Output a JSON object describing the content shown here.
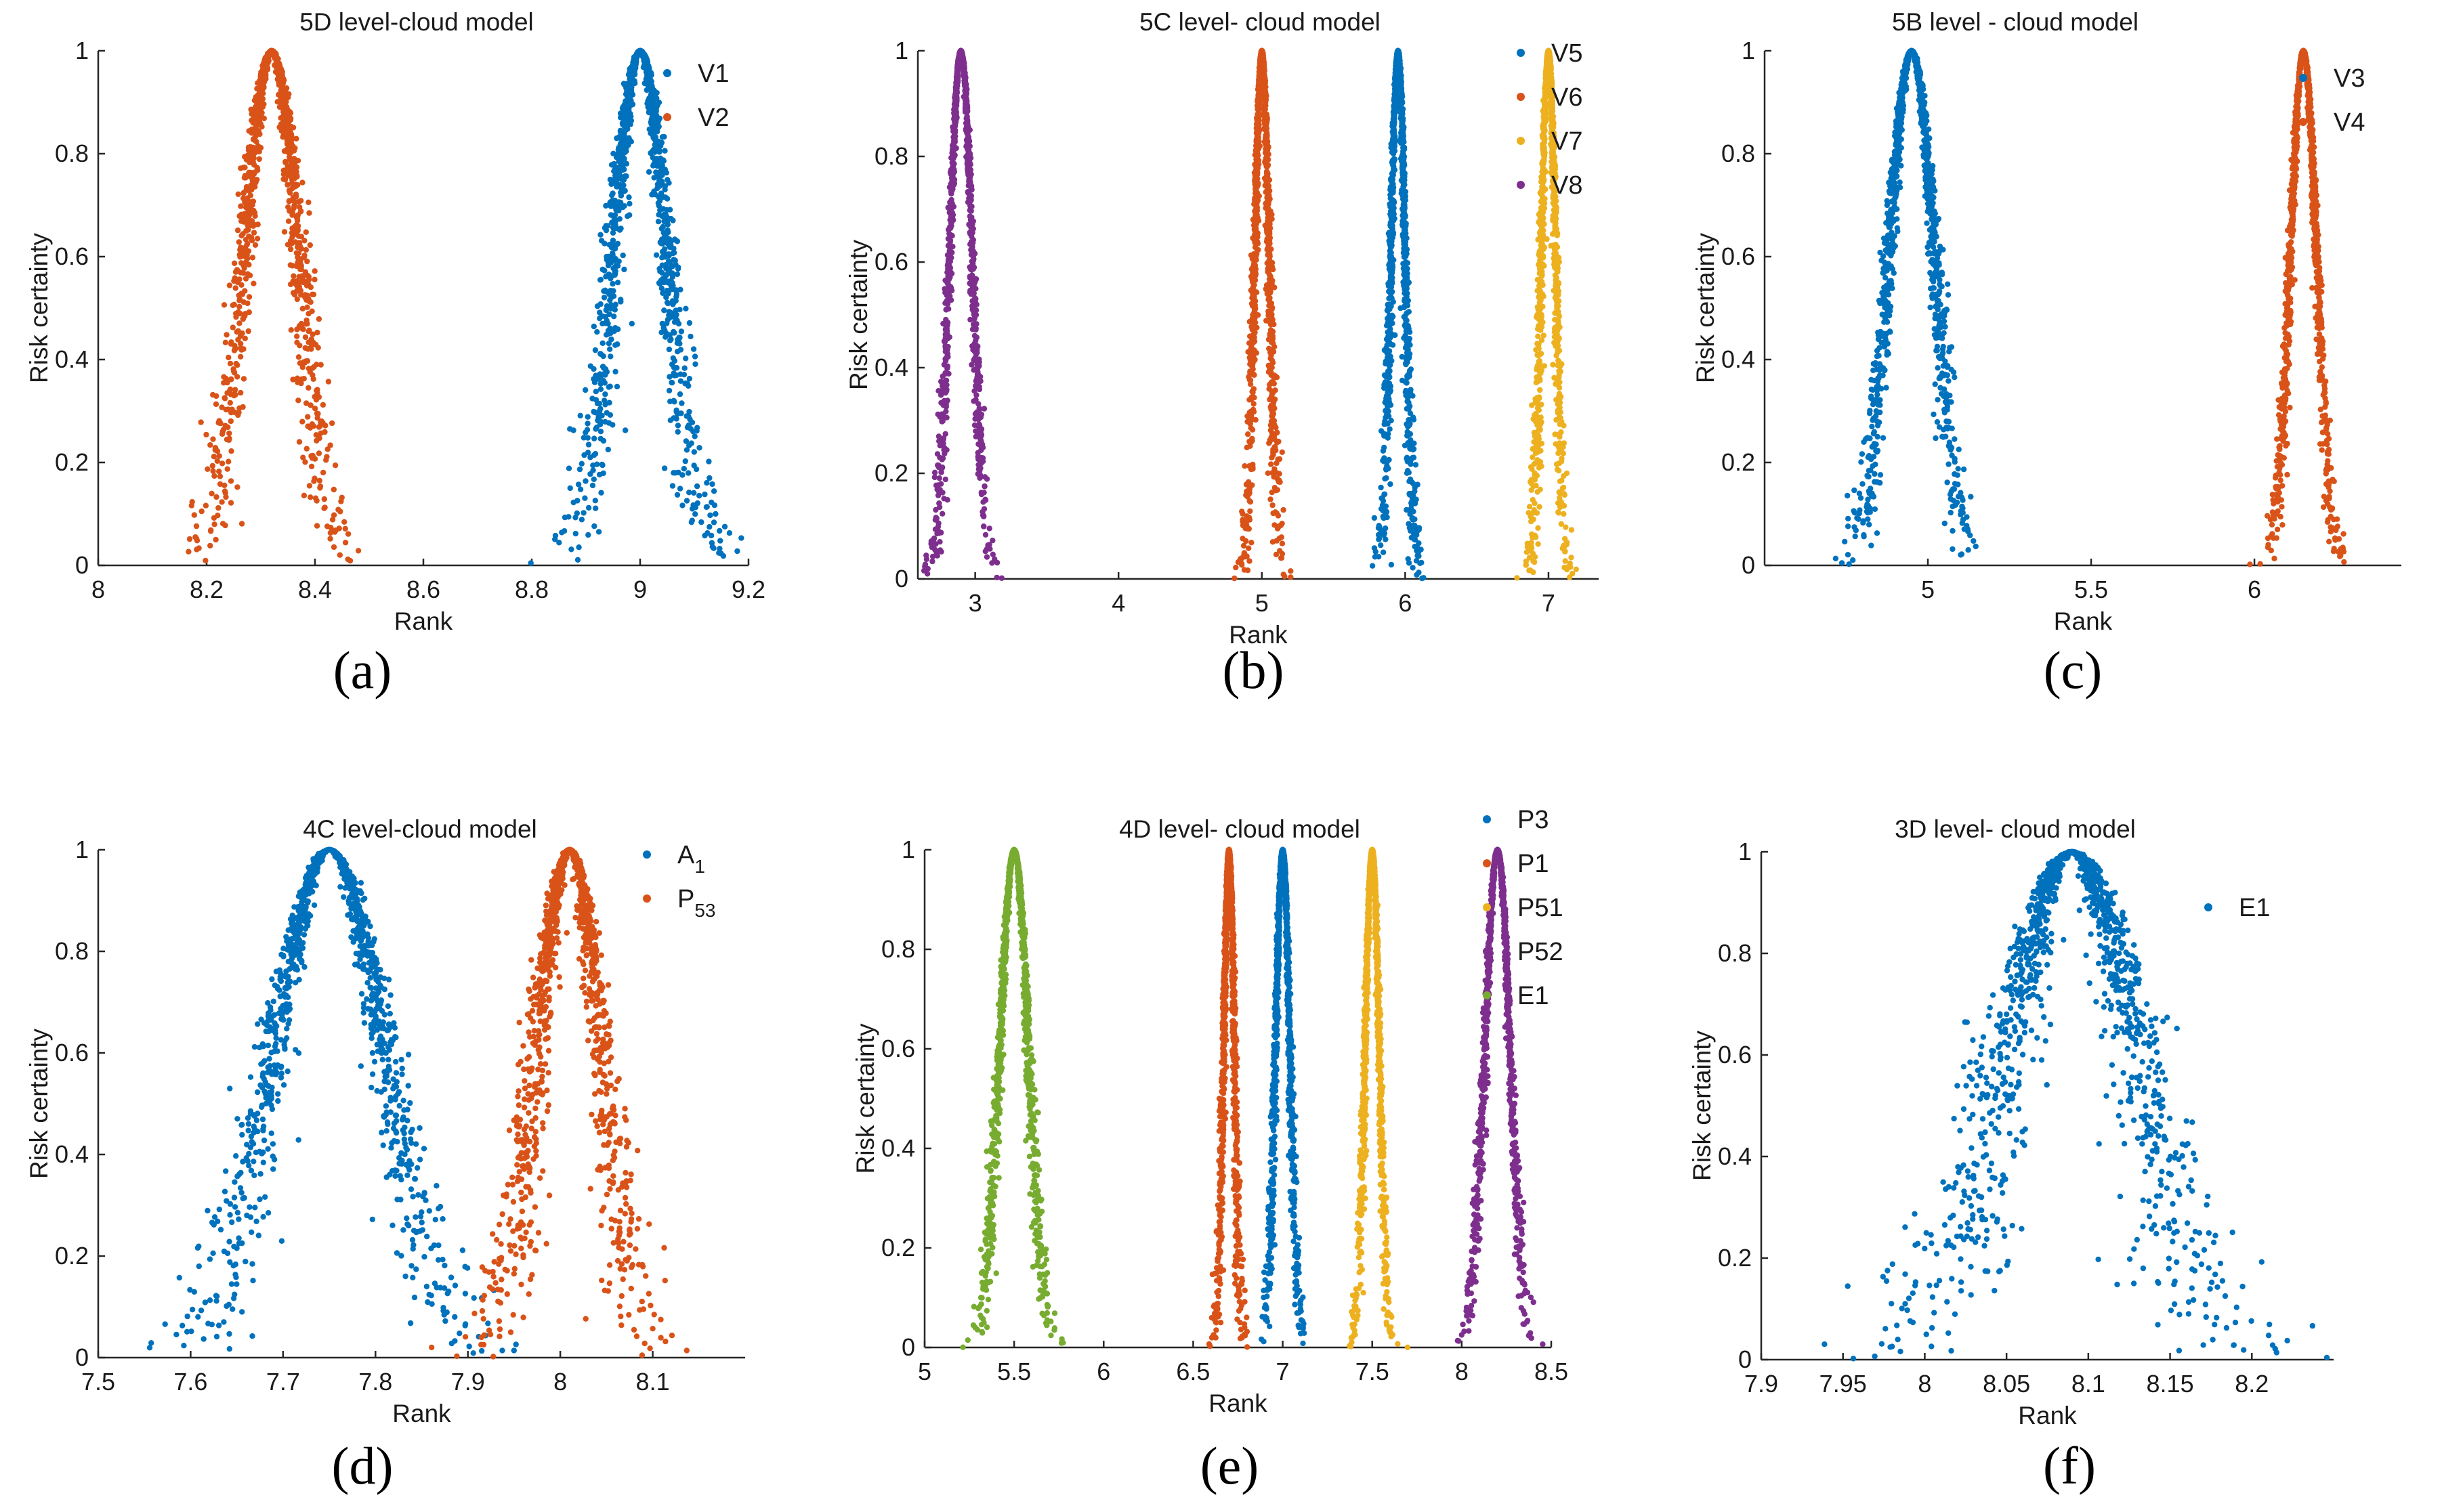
{
  "captions": {
    "a": "(a)",
    "b": "(b)",
    "c": "(c)",
    "d": "(d)",
    "e": "(e)",
    "f": "(f)"
  },
  "chart_data": [
    {
      "type": "scatter",
      "title": "5D level-cloud model",
      "xlabel": "Rank",
      "ylabel": "Risk certainty",
      "xlim": [
        8,
        9.2
      ],
      "ylim": [
        0,
        1
      ],
      "xticks": [
        "8",
        "8.2",
        "8.4",
        "8.6",
        "8.8",
        "9",
        "9.2"
      ],
      "xtick_values": [
        8,
        8.2,
        8.4,
        8.6,
        8.8,
        9,
        9.2
      ],
      "yticks": [
        "0",
        "0.2",
        "0.4",
        "0.6",
        "0.8",
        "1"
      ],
      "ytick_values": [
        0,
        0.2,
        0.4,
        0.6,
        0.8,
        1
      ],
      "legend_position": "top-right",
      "series": [
        {
          "name": "V1",
          "color": "#0072BD",
          "Ex": 9.0,
          "En": 0.05,
          "He": 0.01
        },
        {
          "name": "V2",
          "color": "#D95319",
          "Ex": 8.32,
          "En": 0.05,
          "He": 0.01
        }
      ]
    },
    {
      "type": "scatter",
      "title": "5C level- cloud model",
      "xlabel": "Rank",
      "ylabel": "Risk certainty",
      "xlim": [
        2.6,
        7.35
      ],
      "ylim": [
        0,
        1
      ],
      "xticks": [
        "3",
        "4",
        "5",
        "6",
        "7"
      ],
      "xtick_values": [
        3,
        4,
        5,
        6,
        7
      ],
      "yticks": [
        "0",
        "0.2",
        "0.4",
        "0.6",
        "0.8",
        "1"
      ],
      "ytick_values": [
        0,
        0.2,
        0.4,
        0.6,
        0.8,
        1
      ],
      "legend_position": "top-right",
      "series": [
        {
          "name": "V5",
          "color": "#0072BD",
          "Ex": 5.95,
          "En": 0.05,
          "He": 0.01
        },
        {
          "name": "V6",
          "color": "#D95319",
          "Ex": 5.0,
          "En": 0.05,
          "He": 0.01
        },
        {
          "name": "V7",
          "color": "#EDB120",
          "Ex": 7.0,
          "En": 0.05,
          "He": 0.01
        },
        {
          "name": "V8",
          "color": "#7E2F8E",
          "Ex": 2.9,
          "En": 0.08,
          "He": 0.01
        }
      ]
    },
    {
      "type": "scatter",
      "title": "5B level - cloud model",
      "xlabel": "Rank",
      "ylabel": "Risk certainty",
      "xlim": [
        4.5,
        6.45
      ],
      "ylim": [
        0,
        1
      ],
      "xticks": [
        "5",
        "5.5",
        "6"
      ],
      "xtick_values": [
        5,
        5.5,
        6
      ],
      "yticks": [
        "0",
        "0.2",
        "0.4",
        "0.6",
        "0.8",
        "1"
      ],
      "ytick_values": [
        0,
        0.2,
        0.4,
        0.6,
        0.8,
        1
      ],
      "legend_position": "top-right",
      "series": [
        {
          "name": "V3",
          "color": "#0072BD",
          "Ex": 4.95,
          "En": 0.07,
          "He": 0.01
        },
        {
          "name": "V4",
          "color": "#D95319",
          "Ex": 6.15,
          "En": 0.04,
          "He": 0.005
        }
      ]
    },
    {
      "type": "scatter",
      "title": "4C level-cloud model",
      "xlabel": "Rank",
      "ylabel": "Risk certainty",
      "xlim": [
        7.5,
        8.2
      ],
      "ylim": [
        0,
        1
      ],
      "xticks": [
        "7.5",
        "7.6",
        "7.7",
        "7.8",
        "7.9",
        "8",
        "8.1"
      ],
      "xtick_values": [
        7.5,
        7.6,
        7.7,
        7.8,
        7.9,
        8,
        8.1
      ],
      "yticks": [
        "0",
        "0.2",
        "0.4",
        "0.6",
        "0.8",
        "1"
      ],
      "ytick_values": [
        0,
        0.2,
        0.4,
        0.6,
        0.8,
        1
      ],
      "legend_position": "top-right",
      "series": [
        {
          "name": "A",
          "sub": "1",
          "color": "#0072BD",
          "Ex": 7.75,
          "En": 0.06,
          "He": 0.01
        },
        {
          "name": "P",
          "sub": "53",
          "color": "#D95319",
          "Ex": 8.01,
          "En": 0.035,
          "He": 0.008
        }
      ]
    },
    {
      "type": "scatter",
      "title": "4D level- cloud model",
      "xlabel": "Rank",
      "ylabel": "Risk certainty",
      "xlim": [
        5,
        8.5
      ],
      "ylim": [
        0,
        1
      ],
      "xticks": [
        "5",
        "5.5",
        "6",
        "6.5",
        "7",
        "7.5",
        "8",
        "8.5"
      ],
      "xtick_values": [
        5,
        5.5,
        6,
        6.5,
        7,
        7.5,
        8,
        8.5
      ],
      "yticks": [
        "0",
        "0.2",
        "0.4",
        "0.6",
        "0.8",
        "1"
      ],
      "ytick_values": [
        0,
        0.2,
        0.4,
        0.6,
        0.8,
        1
      ],
      "legend_position": "top-right",
      "series": [
        {
          "name": "P3",
          "color": "#0072BD",
          "Ex": 7.0,
          "En": 0.04,
          "He": 0.006
        },
        {
          "name": "P1",
          "color": "#D95319",
          "Ex": 6.7,
          "En": 0.03,
          "He": 0.006
        },
        {
          "name": "P51",
          "color": "#EDB120",
          "Ex": 7.5,
          "En": 0.04,
          "He": 0.006
        },
        {
          "name": "P52",
          "color": "#7E2F8E",
          "Ex": 8.2,
          "En": 0.07,
          "He": 0.008
        },
        {
          "name": "E1",
          "color": "#77AC30",
          "Ex": 5.5,
          "En": 0.08,
          "He": 0.01
        }
      ]
    },
    {
      "type": "scatter",
      "title": "3D level- cloud model",
      "xlabel": "Rank",
      "ylabel": "Risk certainty",
      "xlim": [
        7.9,
        8.25
      ],
      "ylim": [
        0,
        1
      ],
      "xticks": [
        "7.9",
        "7.95",
        "8",
        "8.05",
        "8.1",
        "8.15",
        "8.2"
      ],
      "xtick_values": [
        7.9,
        7.95,
        8,
        8.05,
        8.1,
        8.15,
        8.2
      ],
      "yticks": [
        "0",
        "0.2",
        "0.4",
        "0.6",
        "0.8",
        "1"
      ],
      "ytick_values": [
        0,
        0.2,
        0.4,
        0.6,
        0.8,
        1
      ],
      "legend_position": "top-right",
      "series": [
        {
          "name": "E1",
          "color": "#0072BD",
          "Ex": 8.09,
          "En": 0.04,
          "He": 0.01
        }
      ]
    }
  ]
}
